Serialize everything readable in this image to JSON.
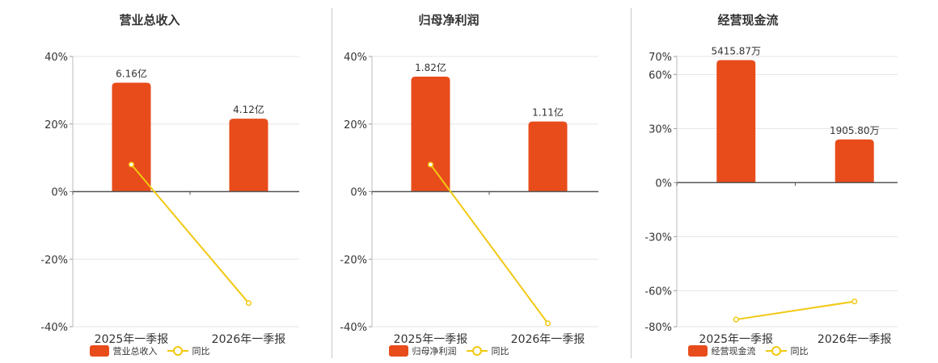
{
  "colors": {
    "bar": "#e84c1b",
    "line": "#f2c811"
  },
  "legend": {
    "line_label": "同比"
  },
  "chart_data": [
    {
      "type": "bar",
      "title": "营业总收入",
      "categories": [
        "2025年一季报",
        "2026年一季报"
      ],
      "bar_label": "营业总收入",
      "bar_values": [
        6.16,
        4.12
      ],
      "bar_value_labels": [
        "6.16亿",
        "4.12亿"
      ],
      "bar_unit": "亿",
      "bar_max": 7.64,
      "yoy_values": [
        8,
        -33
      ],
      "yoy_label": "同比",
      "ylim": [
        -40,
        40
      ],
      "y_ticks": [
        40,
        20,
        0,
        -20,
        -40
      ],
      "y_tick_labels": [
        "40%",
        "20%",
        "0%",
        "-20%",
        "-40%"
      ],
      "grid": true
    },
    {
      "type": "bar",
      "title": "归母净利润",
      "categories": [
        "2025年一季报",
        "2026年一季报"
      ],
      "bar_label": "归母净利润",
      "bar_values": [
        1.82,
        1.11
      ],
      "bar_value_labels": [
        "1.82亿",
        "1.11亿"
      ],
      "bar_unit": "亿",
      "bar_max": 2.14,
      "yoy_values": [
        8,
        -39
      ],
      "yoy_label": "同比",
      "ylim": [
        -40,
        40
      ],
      "y_ticks": [
        40,
        20,
        0,
        -20,
        -40
      ],
      "y_tick_labels": [
        "40%",
        "20%",
        "0%",
        "-20%",
        "-40%"
      ],
      "grid": true
    },
    {
      "type": "bar",
      "title": "经营现金流",
      "categories": [
        "2025年一季报",
        "2026年一季报"
      ],
      "bar_label": "经营现金流",
      "bar_values": [
        5415.87,
        1905.8
      ],
      "bar_value_labels": [
        "5415.87万",
        "1905.80万"
      ],
      "bar_unit": "万",
      "bar_max": 5415.87,
      "bar_top_pct": 68,
      "yoy_values": [
        -76,
        -66
      ],
      "yoy_label": "同比",
      "ylim": [
        -80,
        70
      ],
      "y_ticks": [
        70,
        60,
        30,
        0,
        -30,
        -60,
        -80
      ],
      "y_tick_labels": [
        "70%",
        "60%",
        "30%",
        "0%",
        "-30%",
        "-60%",
        "-80%"
      ],
      "grid": true
    }
  ]
}
